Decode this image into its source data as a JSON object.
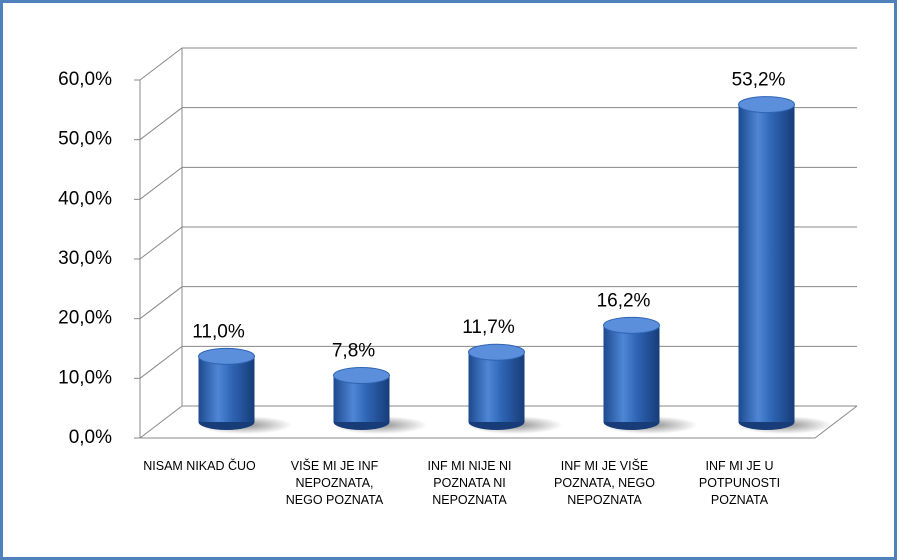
{
  "chart_data": {
    "type": "bar",
    "categories": [
      "NISAM NIKAD ČUO",
      "VIŠE MI JE INF NEPOZNATA, NEGO POZNATA",
      "INF MI NIJE NI POZNATA NI NEPOZNATA",
      "INF MI JE VIŠE POZNATA, NEGO NEPOZNATA",
      "INF MI JE U POTPUNOSTI POZNATA"
    ],
    "values": [
      11.0,
      7.8,
      11.7,
      16.2,
      53.2
    ],
    "value_labels": [
      "11,0%",
      "7,8%",
      "11,7%",
      "16,2%",
      "53,2%"
    ],
    "color": "#2e64b4",
    "ylim": [
      0,
      60
    ],
    "yticks": [
      {
        "value": 0,
        "label": "0,0%"
      },
      {
        "value": 10,
        "label": "10,0%"
      },
      {
        "value": 20,
        "label": "20,0%"
      },
      {
        "value": 30,
        "label": "30,0%"
      },
      {
        "value": 40,
        "label": "40,0%"
      },
      {
        "value": 50,
        "label": "50,0%"
      },
      {
        "value": 60,
        "label": "60,0%"
      }
    ],
    "grid": true
  }
}
